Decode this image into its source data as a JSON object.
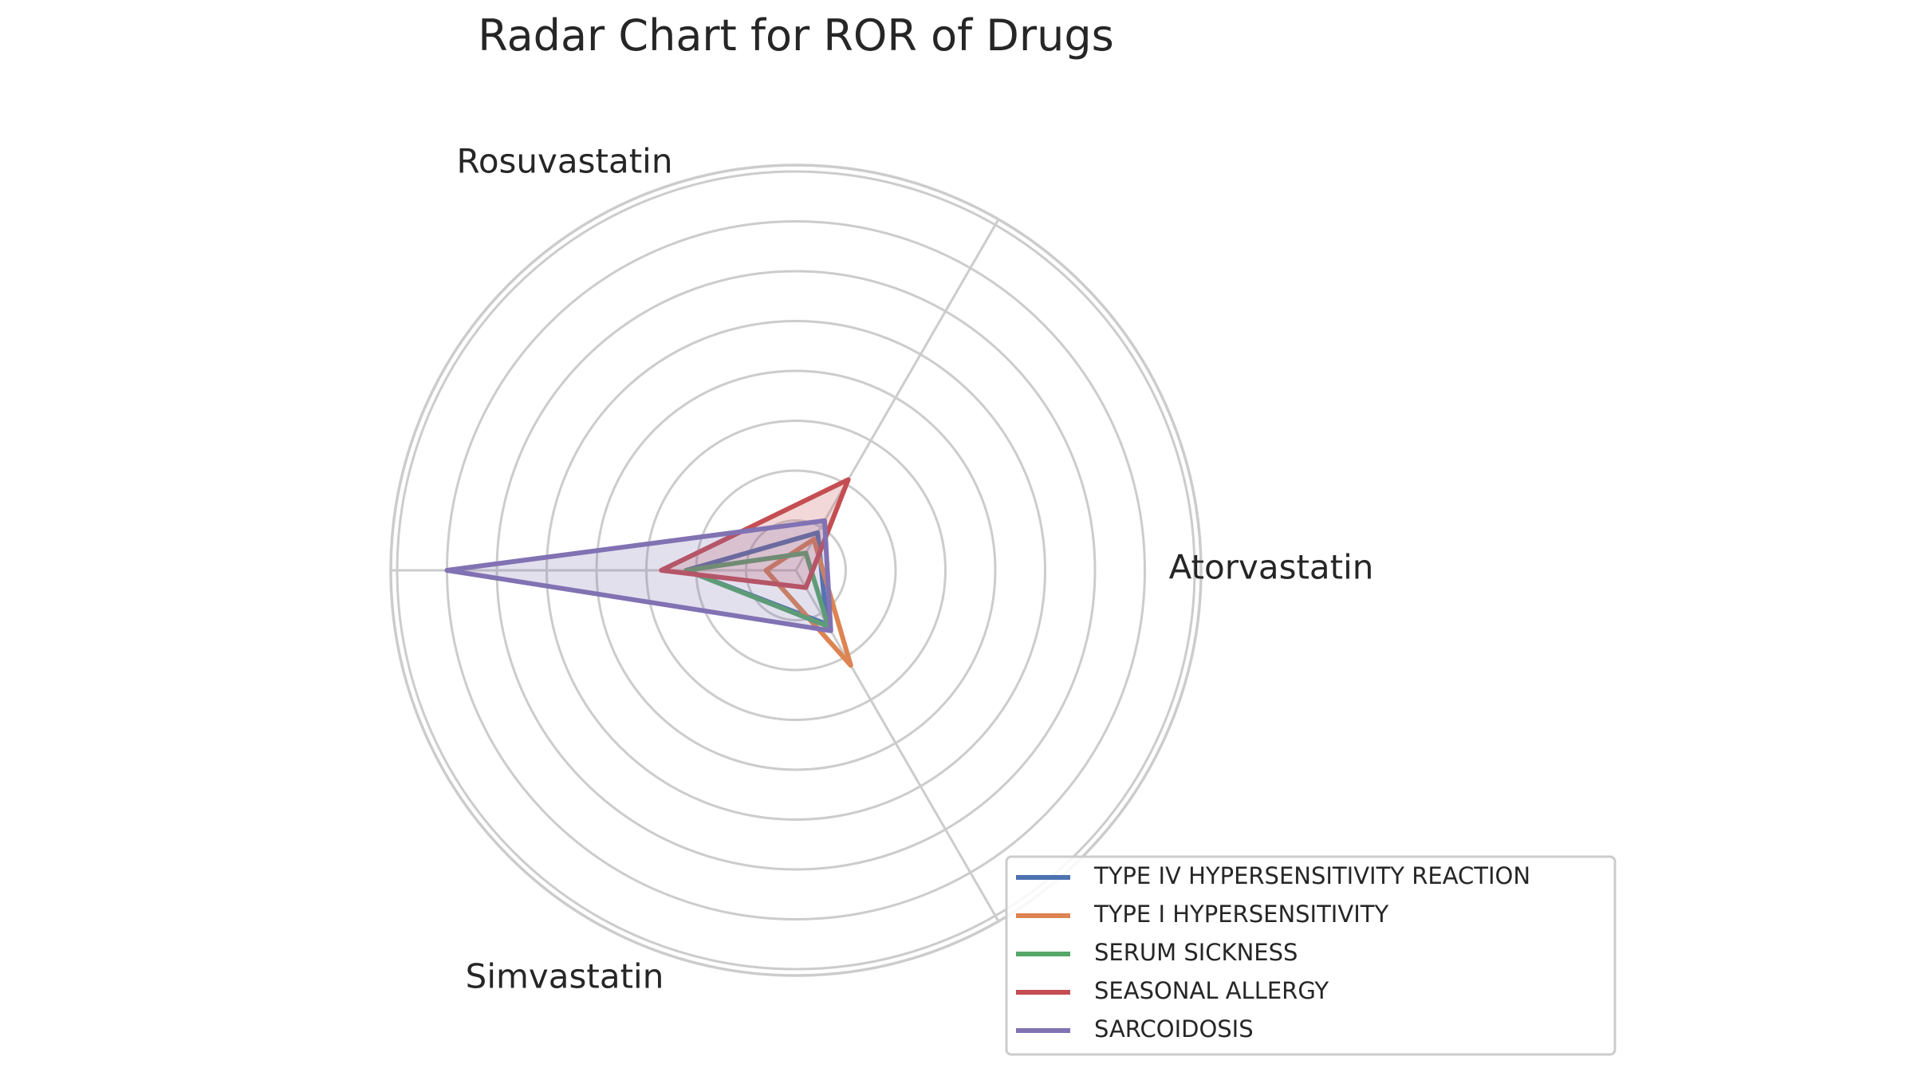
{
  "chart_data": {
    "type": "radar",
    "title": "Radar Chart for ROR of Drugs",
    "axes": [
      "Atorvastatin",
      "Rosuvastatin",
      "Simvastatin"
    ],
    "rmax": 8,
    "rings": [
      1,
      2,
      3,
      4,
      5,
      6,
      7,
      8
    ],
    "grid": true,
    "legend_position": "lower-right",
    "series": [
      {
        "name": "TYPE IV HYPERSENSITIVITY REACTION",
        "values": [
          0.87,
          2.2,
          1.25
        ],
        "color": "#4c72b0",
        "filled": false
      },
      {
        "name": "TYPE I HYPERSENSITIVITY",
        "values": [
          0.72,
          0.6,
          2.2
        ],
        "color": "#dd8452",
        "filled": false
      },
      {
        "name": "SERUM SICKNESS",
        "values": [
          0.4,
          2.2,
          1.3
        ],
        "color": "#55a868",
        "filled": false
      },
      {
        "name": "SEASONAL ALLERGY",
        "values": [
          2.1,
          2.7,
          0.4
        ],
        "color": "#c44e52",
        "filled": true
      },
      {
        "name": "SARCOIDOSIS",
        "values": [
          1.15,
          7.0,
          1.4
        ],
        "color": "#8172b3",
        "filled": true
      }
    ]
  }
}
